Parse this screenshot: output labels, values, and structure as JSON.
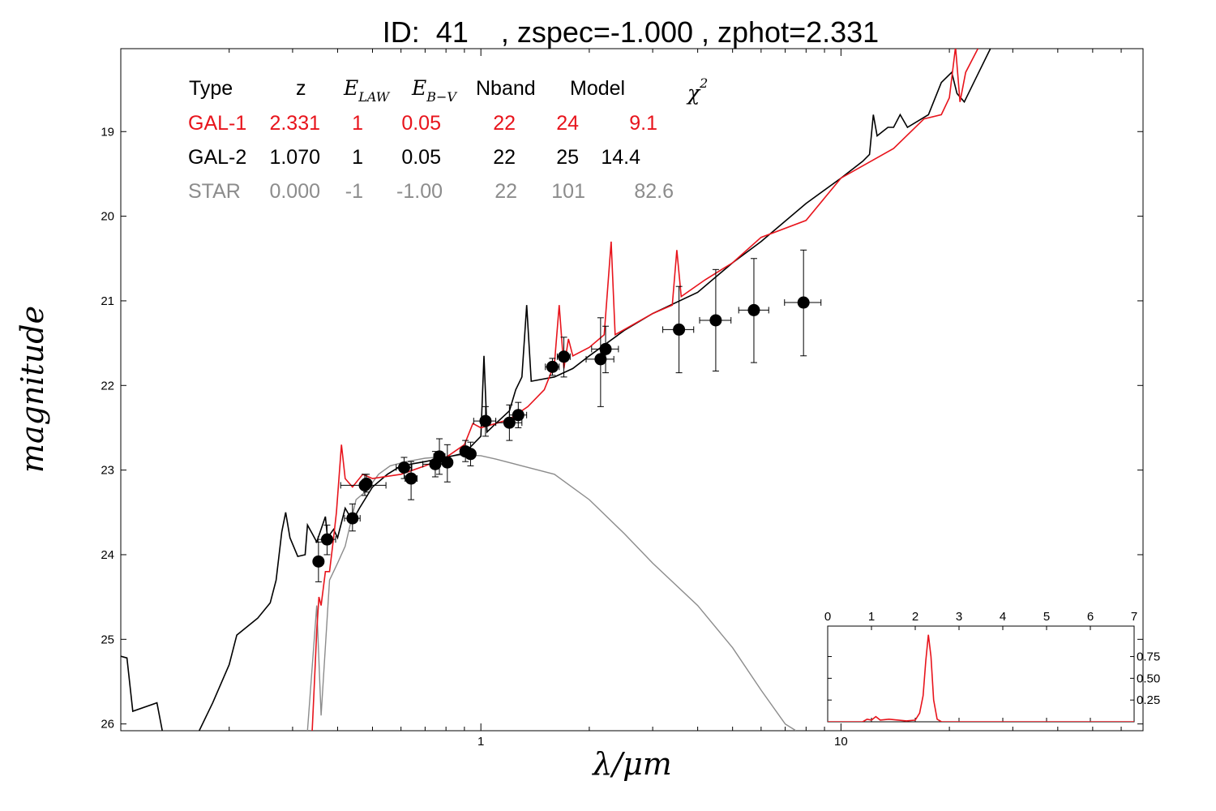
{
  "header": {
    "title": "ID:  41    , zspec=-1.000 , zphot=2.331"
  },
  "colors": {
    "gal1": "#e8141c",
    "gal2": "#000000",
    "star": "#8c8c8c",
    "points": "#000000"
  },
  "table": {
    "headers": [
      "Type",
      "z",
      "E",
      "LAW",
      "E",
      "B−V",
      "Nband",
      "Model",
      "χ",
      "2"
    ],
    "rows": [
      {
        "type": "GAL-1",
        "z": "2.331",
        "elaw": "1",
        "ebv": "0.05",
        "nband": "22",
        "model": "24",
        "chi2": "9.1",
        "color": "#e8141c"
      },
      {
        "type": "GAL-2",
        "z": "1.070",
        "elaw": "1",
        "ebv": "0.05",
        "nband": "22",
        "model": "25",
        "chi2": "14.4",
        "color": "#000000"
      },
      {
        "type": "STAR",
        "z": "0.000",
        "elaw": "-1",
        "ebv": "-1.00",
        "nband": "22",
        "model": "101",
        "chi2": "82.6",
        "color": "#8c8c8c"
      }
    ]
  },
  "chart_data": [
    {
      "type": "scatter",
      "xlabel": "λ/μm",
      "ylabel": "magnitude",
      "xscale": "log",
      "xlim": [
        0.1,
        69
      ],
      "ylim": [
        26.08,
        18.02
      ],
      "x_ticks": [
        {
          "value": 1,
          "label": "1"
        },
        {
          "value": 10,
          "label": "10"
        }
      ],
      "y_ticks": [
        {
          "value": 19,
          "label": "19"
        },
        {
          "value": 20,
          "label": "20"
        },
        {
          "value": 21,
          "label": "21"
        },
        {
          "value": 22,
          "label": "22"
        },
        {
          "value": 23,
          "label": "23"
        },
        {
          "value": 24,
          "label": "24"
        },
        {
          "value": 25,
          "label": "25"
        },
        {
          "value": 26,
          "label": "26"
        }
      ],
      "points": [
        {
          "x": 0.354,
          "y": 24.08,
          "xerr": [
            0.345,
            0.363
          ],
          "yerr": [
            23.85,
            24.32
          ]
        },
        {
          "x": 0.374,
          "y": 23.82,
          "xerr": [
            0.353,
            0.395
          ],
          "yerr": [
            23.65,
            24.0
          ]
        },
        {
          "x": 0.44,
          "y": 23.57,
          "xerr": [
            0.418,
            0.462
          ],
          "yerr": [
            23.4,
            23.72
          ]
        },
        {
          "x": 0.476,
          "y": 23.18,
          "xerr": [
            0.408,
            0.545
          ],
          "yerr": [
            23.05,
            23.3
          ]
        },
        {
          "x": 0.481,
          "y": 23.16,
          "xerr": [
            0.47,
            0.492
          ],
          "yerr": [
            23.05,
            23.26
          ]
        },
        {
          "x": 0.612,
          "y": 22.97,
          "xerr": [
            0.582,
            0.643
          ],
          "yerr": [
            22.85,
            23.1
          ]
        },
        {
          "x": 0.64,
          "y": 23.1,
          "xerr": [
            0.616,
            0.665
          ],
          "yerr": [
            22.9,
            23.35
          ]
        },
        {
          "x": 0.747,
          "y": 22.93,
          "xerr": [
            0.69,
            0.805
          ],
          "yerr": [
            22.78,
            23.08
          ]
        },
        {
          "x": 0.767,
          "y": 22.84,
          "xerr": [
            0.74,
            0.795
          ],
          "yerr": [
            22.63,
            23.05
          ]
        },
        {
          "x": 0.807,
          "y": 22.91,
          "xerr": [
            0.795,
            0.82
          ],
          "yerr": [
            22.7,
            23.14
          ]
        },
        {
          "x": 0.906,
          "y": 22.78,
          "xerr": [
            0.885,
            0.927
          ],
          "yerr": [
            22.65,
            22.9
          ]
        },
        {
          "x": 0.936,
          "y": 22.81,
          "xerr": [
            0.906,
            0.966
          ],
          "yerr": [
            22.67,
            22.95
          ]
        },
        {
          "x": 1.03,
          "y": 22.42,
          "xerr": [
            0.955,
            1.1
          ],
          "yerr": [
            22.25,
            22.6
          ]
        },
        {
          "x": 1.2,
          "y": 22.44,
          "xerr": [
            1.1,
            1.3
          ],
          "yerr": [
            22.23,
            22.65
          ]
        },
        {
          "x": 1.27,
          "y": 22.35,
          "xerr": [
            1.2,
            1.34
          ],
          "yerr": [
            22.2,
            22.5
          ]
        },
        {
          "x": 1.58,
          "y": 21.78,
          "xerr": [
            1.51,
            1.65
          ],
          "yerr": [
            21.68,
            21.88
          ]
        },
        {
          "x": 1.7,
          "y": 21.66,
          "xerr": [
            1.63,
            1.77
          ],
          "yerr": [
            21.43,
            21.9
          ]
        },
        {
          "x": 2.15,
          "y": 21.69,
          "xerr": [
            1.96,
            2.34
          ],
          "yerr": [
            21.2,
            22.25
          ]
        },
        {
          "x": 2.22,
          "y": 21.57,
          "xerr": [
            2.03,
            2.41
          ],
          "yerr": [
            21.3,
            21.85
          ]
        },
        {
          "x": 3.55,
          "y": 21.34,
          "xerr": [
            3.2,
            3.9
          ],
          "yerr": [
            20.83,
            21.85
          ]
        },
        {
          "x": 4.49,
          "y": 21.23,
          "xerr": [
            4.05,
            4.95
          ],
          "yerr": [
            20.63,
            21.83
          ]
        },
        {
          "x": 5.73,
          "y": 21.11,
          "xerr": [
            5.2,
            6.3
          ],
          "yerr": [
            20.5,
            21.73
          ]
        },
        {
          "x": 7.87,
          "y": 21.02,
          "xerr": [
            6.97,
            8.8
          ],
          "yerr": [
            20.4,
            21.65
          ]
        }
      ],
      "series": [
        {
          "key": "gal2",
          "color": "#000000",
          "points": [
            [
              0.1,
              25.2
            ],
            [
              0.104,
              25.22
            ],
            [
              0.108,
              25.85
            ],
            [
              0.126,
              25.75
            ],
            [
              0.132,
              26.2
            ],
            [
              0.16,
              26.2
            ],
            [
              0.18,
              25.75
            ],
            [
              0.2,
              25.3
            ],
            [
              0.21,
              24.95
            ],
            [
              0.24,
              24.75
            ],
            [
              0.26,
              24.57
            ],
            [
              0.27,
              24.3
            ],
            [
              0.28,
              23.73
            ],
            [
              0.287,
              23.5
            ],
            [
              0.295,
              23.8
            ],
            [
              0.31,
              24.02
            ],
            [
              0.325,
              24.0
            ],
            [
              0.33,
              23.65
            ],
            [
              0.34,
              23.75
            ],
            [
              0.35,
              23.85
            ],
            [
              0.37,
              23.55
            ],
            [
              0.375,
              23.8
            ],
            [
              0.39,
              23.7
            ],
            [
              0.4,
              23.8
            ],
            [
              0.42,
              23.45
            ],
            [
              0.44,
              23.6
            ],
            [
              0.46,
              23.45
            ],
            [
              0.5,
              23.2
            ],
            [
              0.55,
              23.05
            ],
            [
              0.6,
              22.95
            ],
            [
              0.7,
              22.9
            ],
            [
              0.8,
              22.85
            ],
            [
              0.9,
              22.8
            ],
            [
              1.0,
              22.6
            ],
            [
              1.02,
              21.65
            ],
            [
              1.04,
              22.55
            ],
            [
              1.1,
              22.45
            ],
            [
              1.2,
              22.3
            ],
            [
              1.25,
              22.05
            ],
            [
              1.3,
              21.9
            ],
            [
              1.34,
              21.05
            ],
            [
              1.38,
              21.95
            ],
            [
              1.6,
              21.9
            ],
            [
              1.8,
              21.8
            ],
            [
              2.0,
              21.65
            ],
            [
              2.5,
              21.35
            ],
            [
              3.0,
              21.15
            ],
            [
              4.0,
              20.9
            ],
            [
              5.0,
              20.55
            ],
            [
              6.0,
              20.3
            ],
            [
              8.0,
              19.85
            ],
            [
              10.0,
              19.55
            ],
            [
              11.5,
              19.35
            ],
            [
              12.0,
              19.27
            ],
            [
              12.3,
              18.8
            ],
            [
              12.6,
              19.05
            ],
            [
              13.5,
              18.95
            ],
            [
              14.0,
              18.95
            ],
            [
              14.6,
              18.8
            ],
            [
              15.3,
              18.95
            ],
            [
              17.5,
              18.8
            ],
            [
              19.0,
              18.42
            ],
            [
              20.3,
              18.3
            ],
            [
              21.0,
              18.55
            ],
            [
              22.0,
              18.65
            ],
            [
              23.5,
              18.4
            ],
            [
              26.0,
              18.02
            ]
          ]
        },
        {
          "key": "gal1",
          "color": "#e8141c",
          "points": [
            [
              0.34,
              26.08
            ],
            [
              0.345,
              25.5
            ],
            [
              0.35,
              24.9
            ],
            [
              0.355,
              24.5
            ],
            [
              0.36,
              24.6
            ],
            [
              0.37,
              24.2
            ],
            [
              0.38,
              24.2
            ],
            [
              0.39,
              23.8
            ],
            [
              0.397,
              23.5
            ],
            [
              0.41,
              22.7
            ],
            [
              0.42,
              23.1
            ],
            [
              0.44,
              23.2
            ],
            [
              0.47,
              23.05
            ],
            [
              0.5,
              23.1
            ],
            [
              0.6,
              23.05
            ],
            [
              0.7,
              22.95
            ],
            [
              0.8,
              22.85
            ],
            [
              0.9,
              22.7
            ],
            [
              0.95,
              22.45
            ],
            [
              1.0,
              22.5
            ],
            [
              1.1,
              22.45
            ],
            [
              1.2,
              22.4
            ],
            [
              1.35,
              22.25
            ],
            [
              1.5,
              22.05
            ],
            [
              1.6,
              21.75
            ],
            [
              1.65,
              21.05
            ],
            [
              1.7,
              21.8
            ],
            [
              1.75,
              21.45
            ],
            [
              1.8,
              21.65
            ],
            [
              2.0,
              21.55
            ],
            [
              2.2,
              21.4
            ],
            [
              2.3,
              20.3
            ],
            [
              2.36,
              21.4
            ],
            [
              2.6,
              21.3
            ],
            [
              3.0,
              21.15
            ],
            [
              3.4,
              21.05
            ],
            [
              3.5,
              20.4
            ],
            [
              3.6,
              20.95
            ],
            [
              4.2,
              20.75
            ],
            [
              5.0,
              20.55
            ],
            [
              6.0,
              20.25
            ],
            [
              8.0,
              20.05
            ],
            [
              10.0,
              19.55
            ],
            [
              14.0,
              19.2
            ],
            [
              17.0,
              18.85
            ],
            [
              19.0,
              18.8
            ],
            [
              20.0,
              18.6
            ],
            [
              20.8,
              18.0
            ],
            [
              21.4,
              18.65
            ],
            [
              22.2,
              18.3
            ],
            [
              24.0,
              18.02
            ]
          ]
        },
        {
          "key": "star",
          "color": "#8c8c8c",
          "points": [
            [
              0.33,
              26.08
            ],
            [
              0.35,
              24.6
            ],
            [
              0.36,
              25.9
            ],
            [
              0.38,
              24.3
            ],
            [
              0.4,
              24.1
            ],
            [
              0.42,
              23.9
            ],
            [
              0.45,
              23.35
            ],
            [
              0.48,
              23.25
            ],
            [
              0.52,
              23.05
            ],
            [
              0.56,
              22.95
            ],
            [
              0.62,
              22.9
            ],
            [
              0.7,
              22.86
            ],
            [
              0.8,
              22.84
            ],
            [
              0.9,
              22.82
            ],
            [
              1.0,
              22.83
            ],
            [
              1.1,
              22.87
            ],
            [
              1.3,
              22.95
            ],
            [
              1.6,
              23.05
            ],
            [
              2.0,
              23.35
            ],
            [
              2.5,
              23.75
            ],
            [
              3.0,
              24.1
            ],
            [
              4.0,
              24.6
            ],
            [
              5.0,
              25.1
            ],
            [
              6.0,
              25.6
            ],
            [
              7.0,
              26.0
            ],
            [
              7.5,
              26.08
            ]
          ]
        }
      ]
    },
    {
      "type": "line",
      "title": "",
      "xlim": [
        0,
        7
      ],
      "ylim": [
        0,
        1.1
      ],
      "x_ticks": [
        {
          "value": 0,
          "label": "0"
        },
        {
          "value": 1,
          "label": "1"
        },
        {
          "value": 2,
          "label": "2"
        },
        {
          "value": 3,
          "label": "3"
        },
        {
          "value": 4,
          "label": "4"
        },
        {
          "value": 5,
          "label": "5"
        },
        {
          "value": 6,
          "label": "6"
        },
        {
          "value": 7,
          "label": "7"
        }
      ],
      "y_ticks": [
        {
          "value": 0.25,
          "label": "0.25"
        },
        {
          "value": 0.5,
          "label": "0.50"
        },
        {
          "value": 0.75,
          "label": "0.75"
        }
      ],
      "series": [
        {
          "key": "pdz",
          "color": "#e8141c",
          "points": [
            [
              0.0,
              0.0
            ],
            [
              0.8,
              0.0
            ],
            [
              0.9,
              0.03
            ],
            [
              1.0,
              0.02
            ],
            [
              1.1,
              0.06
            ],
            [
              1.2,
              0.02
            ],
            [
              1.4,
              0.03
            ],
            [
              1.8,
              0.01
            ],
            [
              2.0,
              0.02
            ],
            [
              2.1,
              0.1
            ],
            [
              2.18,
              0.3
            ],
            [
              2.24,
              0.7
            ],
            [
              2.3,
              1.0
            ],
            [
              2.36,
              0.75
            ],
            [
              2.42,
              0.25
            ],
            [
              2.5,
              0.03
            ],
            [
              2.6,
              0.0
            ],
            [
              7.0,
              0.0
            ]
          ]
        }
      ]
    }
  ]
}
